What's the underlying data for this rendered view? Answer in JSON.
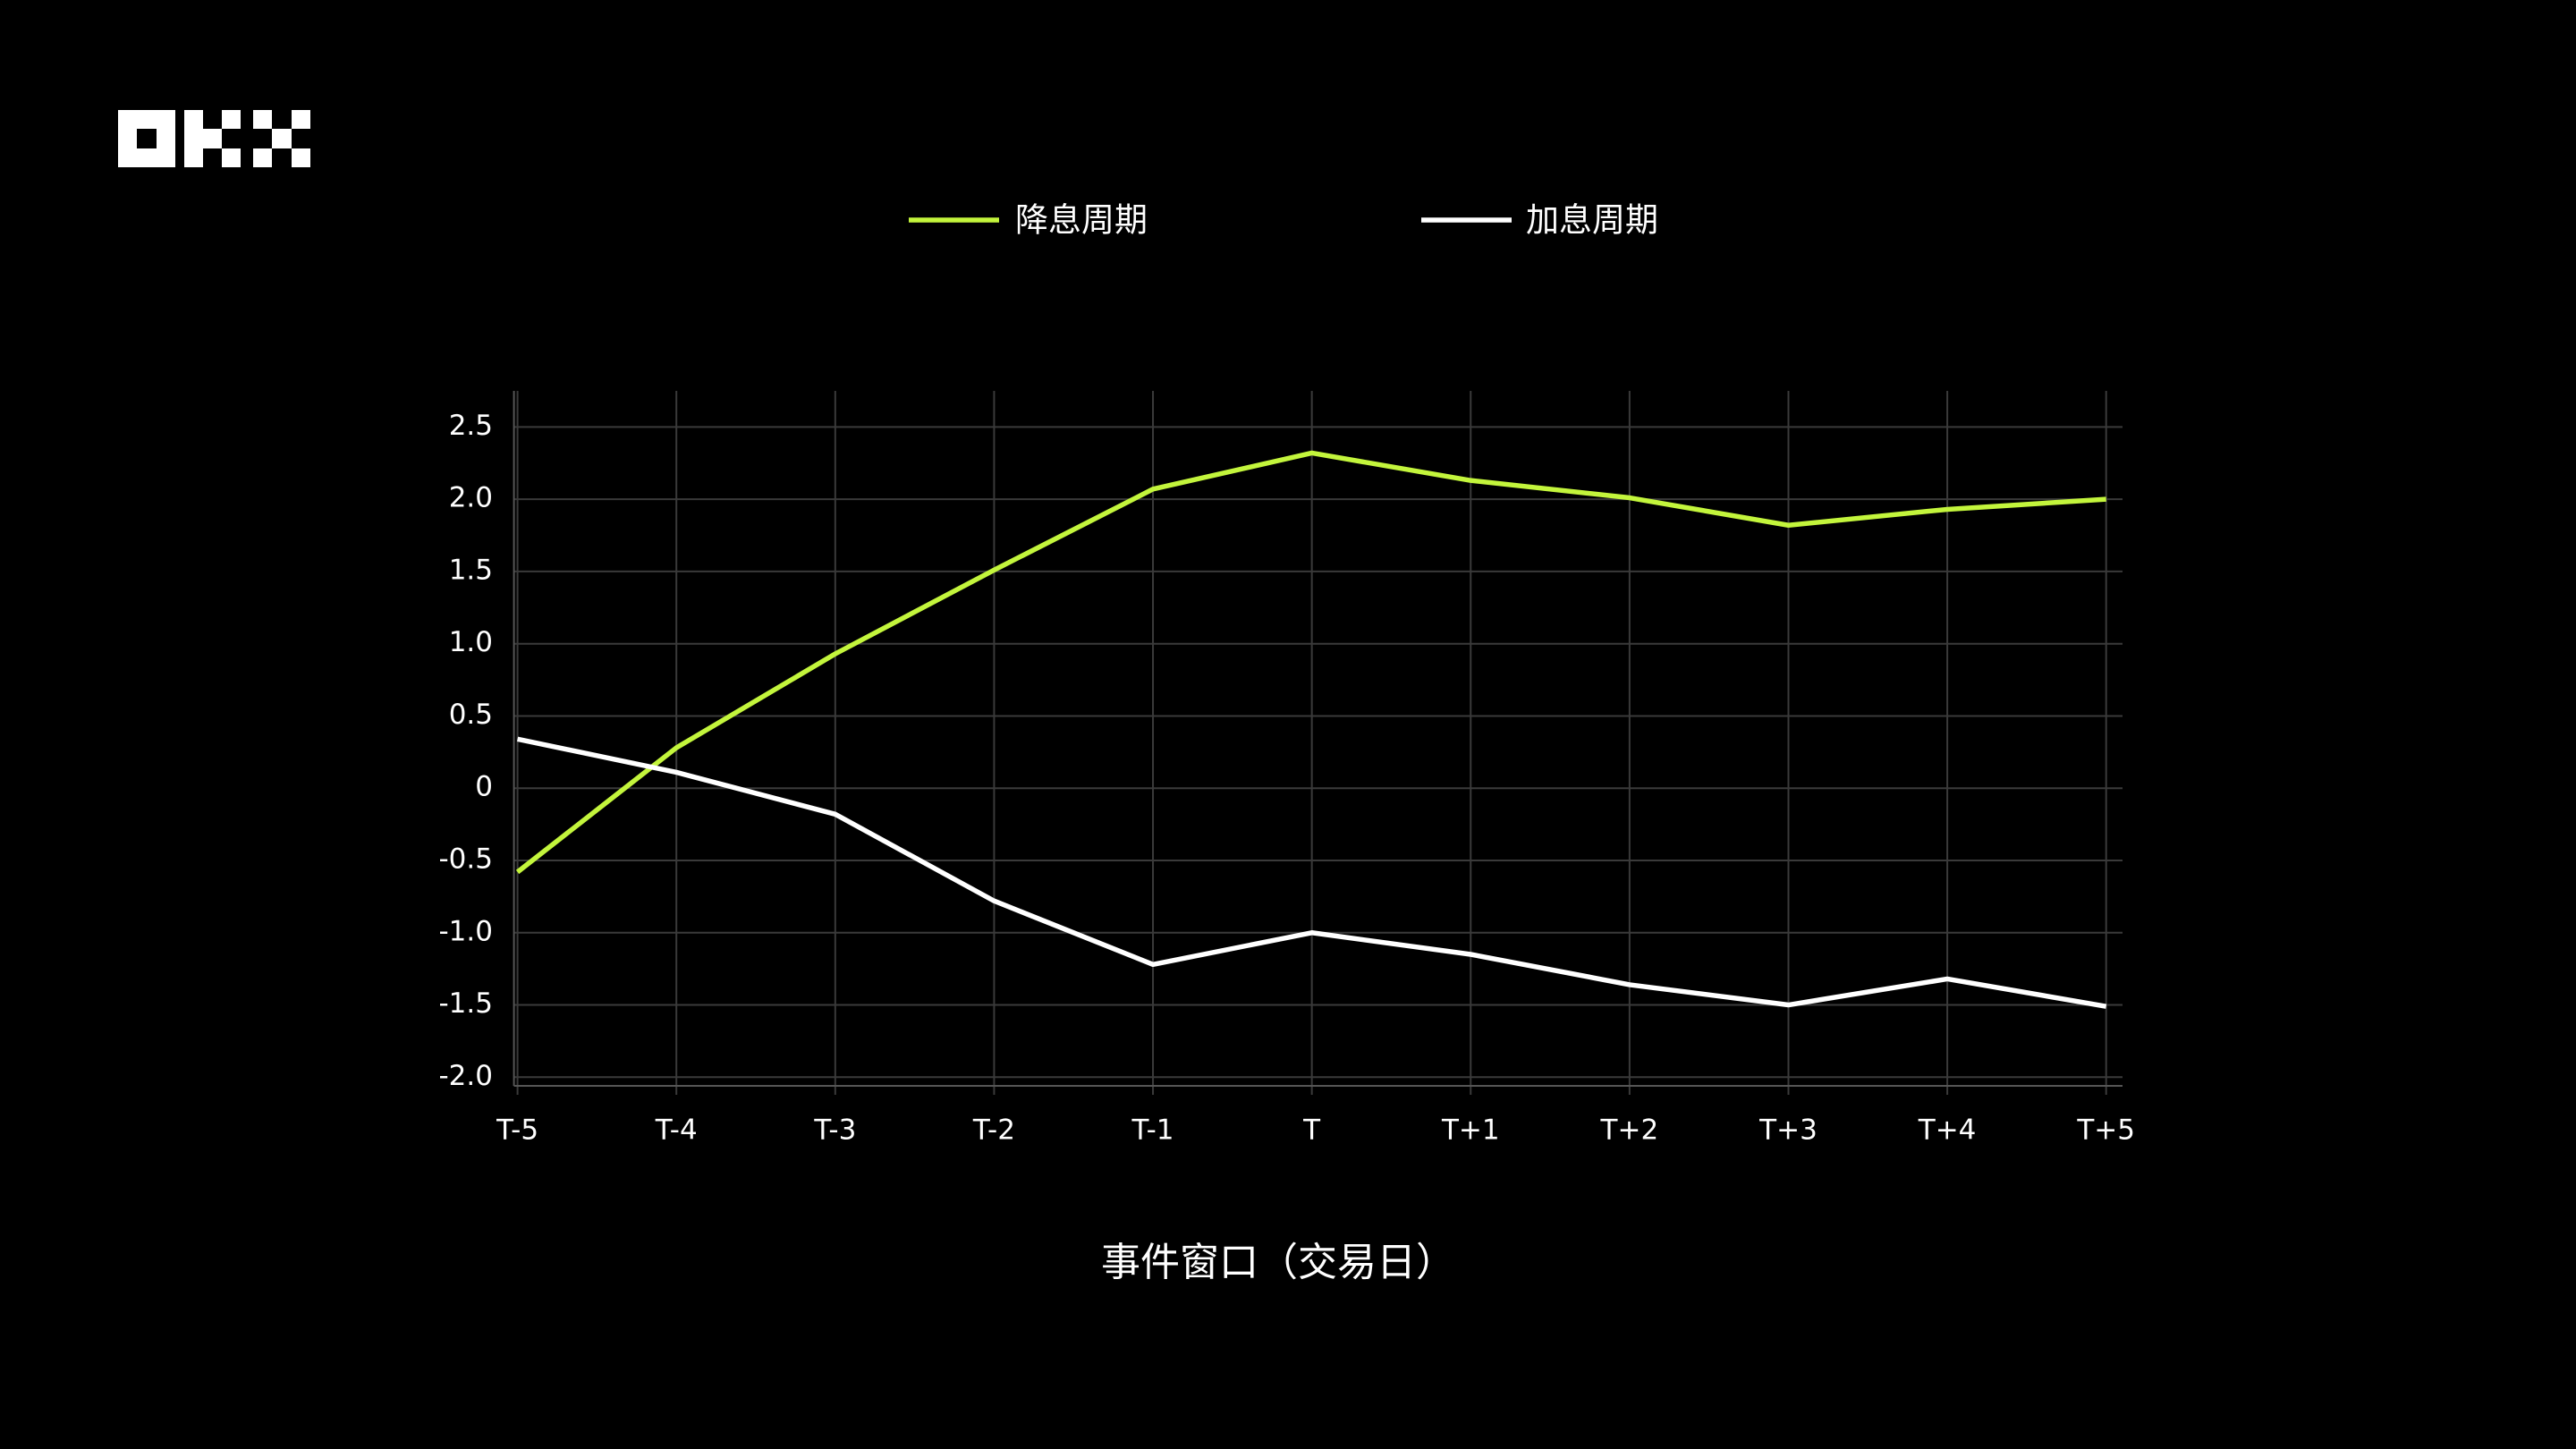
{
  "chart_data": {
    "type": "line",
    "categories": [
      "T-5",
      "T-4",
      "T-3",
      "T-2",
      "T-1",
      "T",
      "T+1",
      "T+2",
      "T+3",
      "T+4",
      "T+5"
    ],
    "series": [
      {
        "name": "降息周期",
        "color": "#c3f53c",
        "values": [
          -0.58,
          0.28,
          0.93,
          1.51,
          2.07,
          2.32,
          2.13,
          2.01,
          1.82,
          1.93,
          2.0
        ]
      },
      {
        "name": "加息周期",
        "color": "#ffffff",
        "values": [
          0.34,
          0.11,
          -0.18,
          -0.78,
          -1.22,
          -1.0,
          -1.15,
          -1.36,
          -1.5,
          -1.32,
          -1.51
        ]
      }
    ],
    "ylim": [
      -2.06,
      2.75
    ],
    "yticks": [
      {
        "value": -2,
        "label": "-2.0"
      },
      -1.5,
      {
        "value": -1,
        "label": "-1.0"
      },
      -0.5,
      0,
      0.5,
      {
        "value": 1,
        "label": "1.0"
      },
      1.5,
      {
        "value": 2,
        "label": "2.0"
      },
      2.5
    ],
    "x_label": "事件窗口（交易日）",
    "grid": true
  }
}
